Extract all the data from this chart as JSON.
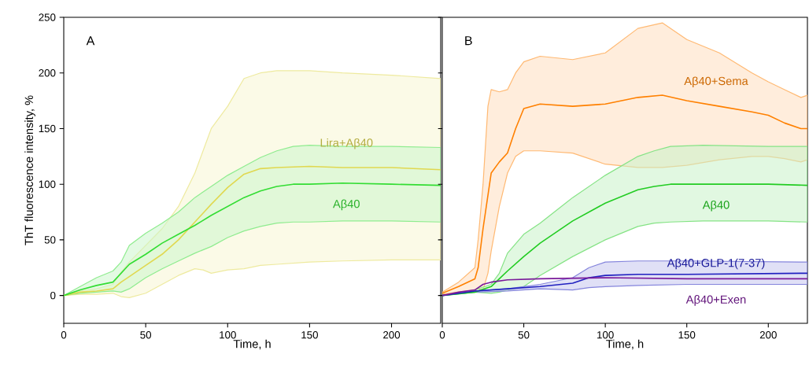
{
  "chart_data": [
    {
      "type": "line",
      "xlabel": "Time, h",
      "ylabel": "ThT fluorescence intensity, %",
      "annotations": [
        "A"
      ],
      "xlim": [
        0,
        230
      ],
      "ylim": [
        -25,
        250
      ],
      "xticks": [
        0,
        50,
        100,
        150,
        200
      ],
      "yticks": [
        0,
        50,
        100,
        150,
        200,
        250
      ],
      "series": [
        {
          "name": "Lira+Aβ40",
          "color": "#e0d850",
          "x": [
            0,
            10,
            20,
            30,
            35,
            40,
            50,
            60,
            70,
            80,
            85,
            90,
            100,
            110,
            120,
            130,
            150,
            170,
            200,
            230
          ],
          "values": [
            0,
            3,
            4,
            6,
            12,
            17,
            27,
            37,
            50,
            66,
            74,
            82,
            97,
            109,
            114,
            115,
            116,
            115,
            115,
            113
          ],
          "upper": [
            0,
            4,
            6,
            10,
            21,
            30,
            45,
            60,
            80,
            110,
            130,
            150,
            170,
            195,
            200,
            202,
            202,
            200,
            198,
            195
          ],
          "lower": [
            0,
            1,
            1,
            2,
            -1,
            -2,
            2,
            10,
            18,
            24,
            23,
            20,
            23,
            24,
            27,
            28,
            30,
            31,
            32,
            32
          ]
        },
        {
          "name": "Aβ40",
          "color": "#33dd33",
          "x": [
            0,
            10,
            20,
            30,
            35,
            40,
            50,
            60,
            70,
            80,
            90,
            100,
            110,
            120,
            130,
            140,
            150,
            170,
            200,
            230
          ],
          "values": [
            0,
            5,
            9,
            12,
            20,
            28,
            37,
            47,
            55,
            63,
            72,
            80,
            88,
            94,
            98,
            100,
            100,
            101,
            100,
            99
          ],
          "upper": [
            0,
            8,
            16,
            22,
            30,
            45,
            56,
            65,
            75,
            88,
            98,
            108,
            116,
            124,
            130,
            134,
            135,
            134,
            134,
            133
          ],
          "lower": [
            0,
            2,
            3,
            4,
            3,
            6,
            16,
            24,
            31,
            38,
            44,
            52,
            58,
            62,
            65,
            66,
            66,
            67,
            67,
            66
          ]
        }
      ]
    },
    {
      "type": "line",
      "xlabel": "Time, h",
      "annotations": [
        "B"
      ],
      "xlim": [
        0,
        224
      ],
      "ylim": [
        -25,
        250
      ],
      "xticks": [
        0,
        50,
        100,
        150,
        200
      ],
      "yticks": [
        0,
        50,
        100,
        150,
        200,
        250
      ],
      "tick_labels": "x",
      "series": [
        {
          "name": "Aβ40+Sema",
          "color": "#ff8000",
          "x": [
            0,
            10,
            20,
            22,
            25,
            28,
            30,
            35,
            40,
            45,
            50,
            60,
            80,
            100,
            120,
            135,
            150,
            170,
            190,
            200,
            210,
            220,
            224
          ],
          "values": [
            2,
            8,
            15,
            25,
            60,
            90,
            110,
            120,
            128,
            150,
            168,
            172,
            170,
            172,
            178,
            180,
            175,
            170,
            165,
            162,
            155,
            150,
            150
          ],
          "upper": [
            3,
            12,
            25,
            50,
            100,
            170,
            185,
            183,
            185,
            200,
            210,
            215,
            212,
            218,
            240,
            245,
            230,
            218,
            200,
            192,
            185,
            178,
            180
          ],
          "lower": [
            1,
            3,
            5,
            6,
            5,
            20,
            40,
            80,
            110,
            125,
            130,
            130,
            128,
            118,
            115,
            115,
            117,
            122,
            125,
            125,
            123,
            120,
            122
          ]
        },
        {
          "name": "Aβ40",
          "color": "#22cc22",
          "x": [
            0,
            20,
            30,
            35,
            40,
            50,
            60,
            80,
            100,
            120,
            130,
            140,
            160,
            200,
            224
          ],
          "values": [
            0,
            3,
            8,
            15,
            22,
            35,
            47,
            67,
            83,
            95,
            98,
            100,
            100,
            100,
            99
          ],
          "upper": [
            0,
            5,
            10,
            20,
            38,
            55,
            65,
            88,
            108,
            125,
            130,
            134,
            135,
            134,
            134
          ],
          "lower": [
            0,
            3,
            2,
            3,
            5,
            8,
            18,
            35,
            50,
            62,
            65,
            66,
            67,
            67,
            66
          ]
        },
        {
          "name": "Aβ40+GLP-1(7-37)",
          "color": "#2020c0",
          "x": [
            0,
            20,
            40,
            60,
            80,
            90,
            100,
            120,
            150,
            224
          ],
          "values": [
            0,
            4,
            6,
            8,
            11,
            16,
            18,
            19,
            19,
            20
          ],
          "upper": [
            0,
            4,
            6,
            10,
            16,
            25,
            30,
            31,
            31,
            30
          ],
          "lower": [
            0,
            3,
            4,
            6,
            5,
            7,
            8,
            9,
            10,
            10
          ]
        },
        {
          "name": "Aβ40+Exen",
          "color": "#7a1a9a",
          "x": [
            0,
            10,
            20,
            25,
            30,
            40,
            60,
            100,
            150,
            224
          ],
          "values": [
            0,
            3,
            5,
            10,
            12,
            14,
            15,
            16,
            15,
            15
          ]
        }
      ]
    }
  ]
}
